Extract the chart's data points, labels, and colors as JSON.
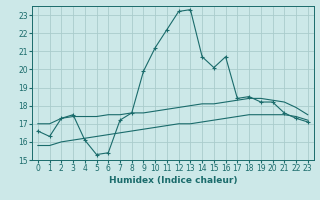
{
  "xlabel": "Humidex (Indice chaleur)",
  "background_color": "#cce8e8",
  "grid_color": "#aacccc",
  "line_color": "#1a6b6b",
  "xlim_min": -0.5,
  "xlim_max": 23.5,
  "ylim_min": 15,
  "ylim_max": 23.5,
  "yticks": [
    15,
    16,
    17,
    18,
    19,
    20,
    21,
    22,
    23
  ],
  "xticks": [
    0,
    1,
    2,
    3,
    4,
    5,
    6,
    7,
    8,
    9,
    10,
    11,
    12,
    13,
    14,
    15,
    16,
    17,
    18,
    19,
    20,
    21,
    22,
    23
  ],
  "line1_x": [
    0,
    1,
    2,
    3,
    4,
    5,
    6,
    7,
    8,
    9,
    10,
    11,
    12,
    13,
    14,
    15,
    16,
    17,
    18,
    19,
    20,
    21,
    22,
    23
  ],
  "line1_y": [
    16.6,
    16.3,
    17.3,
    17.5,
    16.1,
    15.3,
    15.4,
    17.2,
    17.6,
    19.9,
    21.2,
    22.2,
    23.2,
    23.3,
    20.7,
    20.1,
    20.7,
    18.4,
    18.5,
    18.2,
    18.2,
    17.6,
    17.3,
    17.1
  ],
  "line2_x": [
    0,
    1,
    2,
    3,
    4,
    5,
    6,
    7,
    8,
    9,
    10,
    11,
    12,
    13,
    14,
    15,
    16,
    17,
    18,
    19,
    20,
    21,
    22,
    23
  ],
  "line2_y": [
    17.0,
    17.0,
    17.3,
    17.4,
    17.4,
    17.4,
    17.5,
    17.5,
    17.6,
    17.6,
    17.7,
    17.8,
    17.9,
    18.0,
    18.1,
    18.1,
    18.2,
    18.3,
    18.4,
    18.4,
    18.3,
    18.2,
    17.9,
    17.5
  ],
  "line3_x": [
    0,
    1,
    2,
    3,
    4,
    5,
    6,
    7,
    8,
    9,
    10,
    11,
    12,
    13,
    14,
    15,
    16,
    17,
    18,
    19,
    20,
    21,
    22,
    23
  ],
  "line3_y": [
    15.8,
    15.8,
    16.0,
    16.1,
    16.2,
    16.3,
    16.4,
    16.5,
    16.6,
    16.7,
    16.8,
    16.9,
    17.0,
    17.0,
    17.1,
    17.2,
    17.3,
    17.4,
    17.5,
    17.5,
    17.5,
    17.5,
    17.4,
    17.2
  ],
  "tick_fontsize": 5.5,
  "xlabel_fontsize": 6.5
}
